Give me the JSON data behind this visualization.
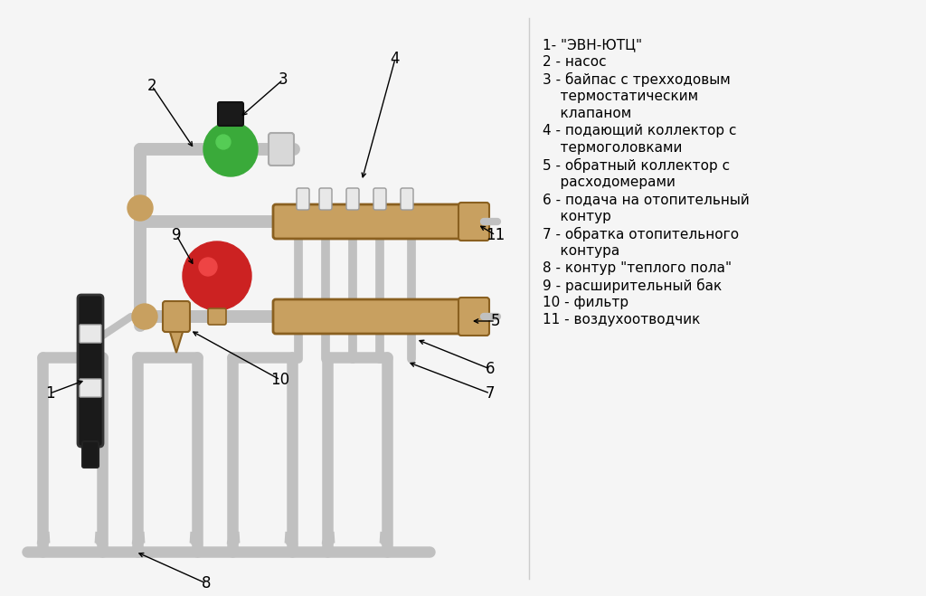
{
  "bg_color": "#f5f5f5",
  "pipe_color": "#c0c0c0",
  "pipe_edge": "#888888",
  "brass_color": "#c8a060",
  "brass_edge": "#8a6020",
  "green_color": "#3aaa3a",
  "red_color": "#cc2222",
  "black_color": "#111111",
  "white_color": "#e8e8e8",
  "label_fontsize": 12,
  "legend_fontsize": 11,
  "legend_entries": [
    "1- \"ЭВН-ЮТЦ\"",
    "2 - насос",
    "3 - байпас с трехходовым",
    "    термостатическим",
    "    клапаном",
    "4 - подающий коллектор с",
    "    термоголовками",
    "5 - обратный коллектор с",
    "    расходомерами",
    "6 - подача на отопительный",
    "    контур",
    "7 - обратка отопительного",
    "    контура",
    "8 - контур \"теплого пола\"",
    "9 - расширительный бак",
    "10 - фильтр",
    "11 - воздухоотводчик"
  ]
}
